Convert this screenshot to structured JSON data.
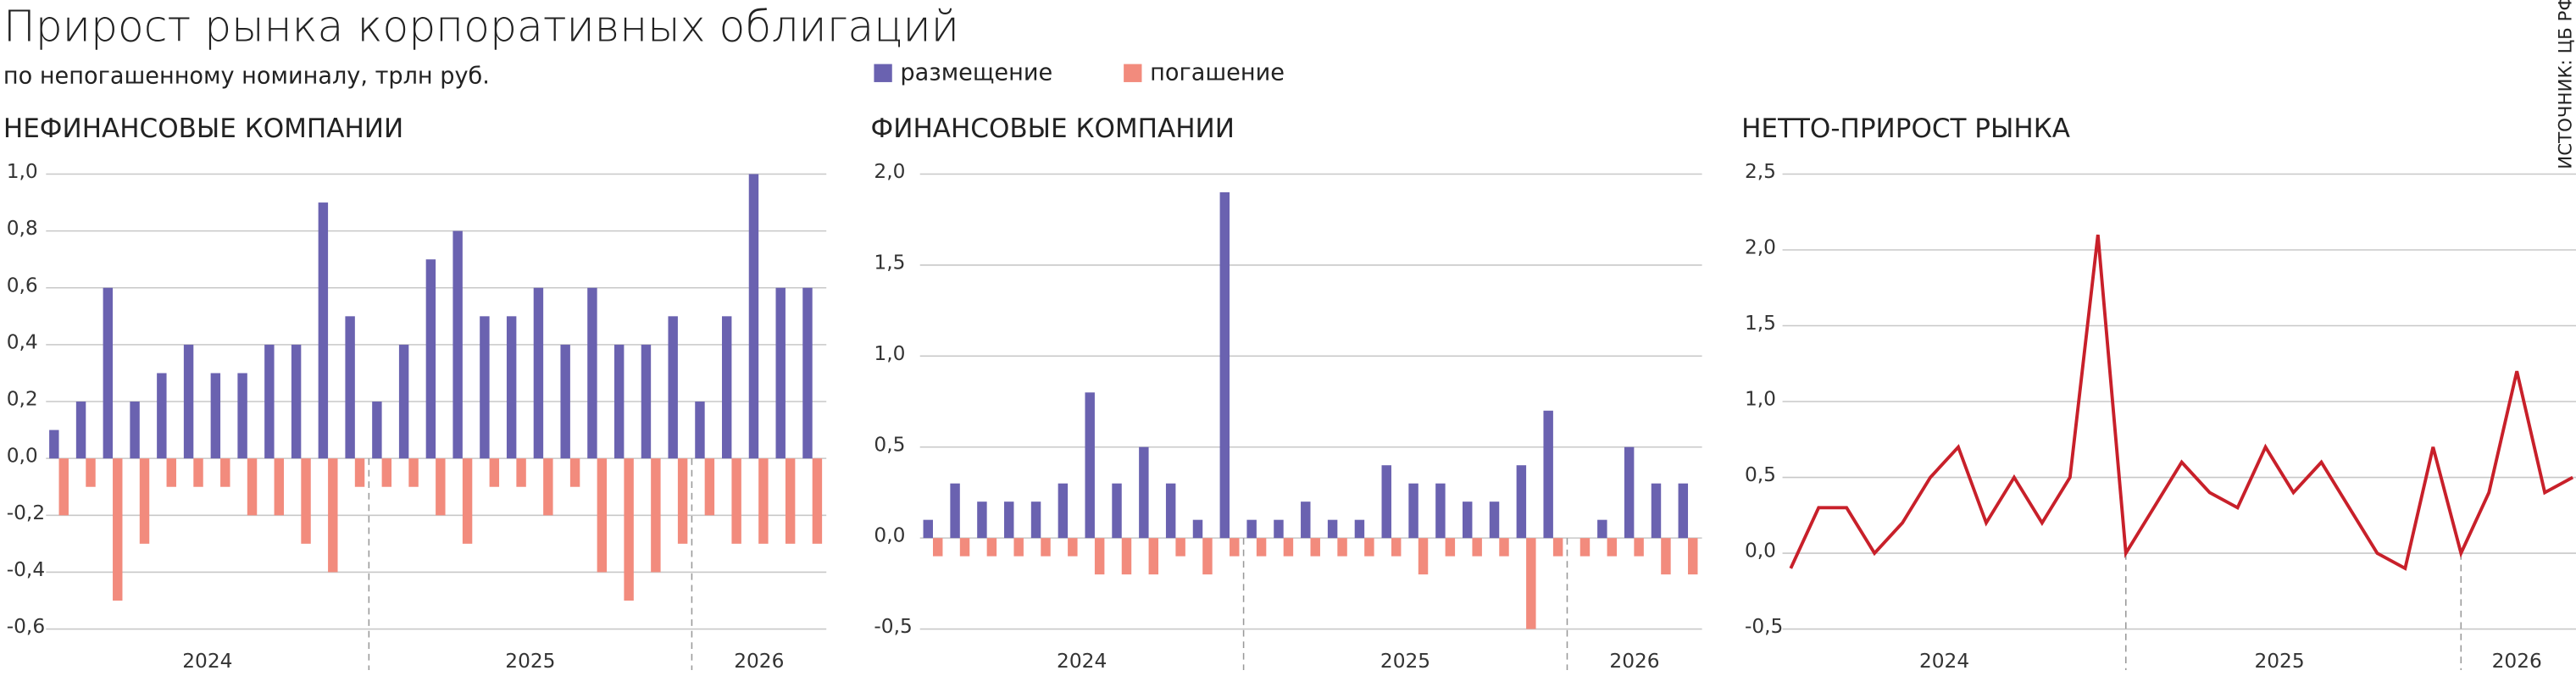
{
  "title": "Прирост рынка корпоративных облигаций",
  "subtitle": "по непогашенному номиналу, трлн руб.",
  "source": "ИСТОЧНИК: ЦБ РФ",
  "chart_data": [
    {
      "type": "bar",
      "title": "НЕФИНАНСОВЫЕ КОМПАНИИ",
      "legend": false,
      "categories": [
        "2024",
        "2024",
        "2024",
        "2024",
        "2024",
        "2024",
        "2024",
        "2024",
        "2024",
        "2024",
        "2024",
        "2024",
        "2025",
        "2025",
        "2025",
        "2025",
        "2025",
        "2025",
        "2025",
        "2025",
        "2025",
        "2025",
        "2025",
        "2025",
        "2026",
        "2026",
        "2026",
        "2026",
        "2026"
      ],
      "series": [
        {
          "color": "#6a62b0",
          "values": [
            0.1,
            0.2,
            0.6,
            0.2,
            0.3,
            0.4,
            0.3,
            0.3,
            0.4,
            0.4,
            0.9,
            0.5,
            0.2,
            0.4,
            0.7,
            0.8,
            0.5,
            0.5,
            0.6,
            0.4,
            0.6,
            0.4,
            0.4,
            0.5,
            0.2,
            0.5,
            1.0,
            0.6,
            0.6
          ]
        },
        {
          "color": "#f28b7d",
          "values": [
            -0.2,
            -0.1,
            -0.5,
            -0.3,
            -0.1,
            -0.1,
            -0.1,
            -0.2,
            -0.2,
            -0.3,
            -0.4,
            -0.1,
            -0.1,
            -0.1,
            -0.2,
            -0.3,
            -0.1,
            -0.1,
            -0.2,
            -0.1,
            -0.4,
            -0.5,
            -0.4,
            -0.3,
            -0.2,
            -0.3,
            -0.3,
            -0.3,
            -0.3
          ]
        }
      ],
      "ylim": [
        -0.6,
        1.0
      ],
      "yticks": [
        {
          "value": -0.6,
          "label": "-0,6"
        },
        {
          "value": -0.4,
          "label": "-0,4"
        },
        {
          "value": -0.2,
          "label": "-0,2"
        },
        {
          "value": 0,
          "label": "0,0"
        },
        {
          "value": 0.2,
          "label": "0,2"
        },
        {
          "value": 0.4,
          "label": "0,4"
        },
        {
          "value": 0.6,
          "label": "0,6"
        },
        {
          "value": 0.8,
          "label": "0,8"
        },
        {
          "value": 1.0,
          "label": "1,0"
        }
      ],
      "grid": true
    },
    {
      "type": "bar",
      "title": "ФИНАНСОВЫЕ КОМПАНИИ",
      "legend": true,
      "categories": [
        "2024",
        "2024",
        "2024",
        "2024",
        "2024",
        "2024",
        "2024",
        "2024",
        "2024",
        "2024",
        "2024",
        "2024",
        "2025",
        "2025",
        "2025",
        "2025",
        "2025",
        "2025",
        "2025",
        "2025",
        "2025",
        "2025",
        "2025",
        "2025",
        "2026",
        "2026",
        "2026",
        "2026",
        "2026"
      ],
      "series": [
        {
          "name": "размещение",
          "color": "#6a62b0",
          "values": [
            0.1,
            0.3,
            0.2,
            0.2,
            0.2,
            0.3,
            0.8,
            0.3,
            0.5,
            0.3,
            0.1,
            1.9,
            0.1,
            0.1,
            0.2,
            0.1,
            0.1,
            0.4,
            0.3,
            0.3,
            0.2,
            0.2,
            0.4,
            0.7,
            0.0,
            0.1,
            0.5,
            0.3,
            0.3
          ]
        },
        {
          "name": "погашение",
          "color": "#f28b7d",
          "values": [
            -0.1,
            -0.1,
            -0.1,
            -0.1,
            -0.1,
            -0.1,
            -0.2,
            -0.2,
            -0.2,
            -0.1,
            -0.2,
            -0.1,
            -0.1,
            -0.1,
            -0.1,
            -0.1,
            -0.1,
            -0.1,
            -0.2,
            -0.1,
            -0.1,
            -0.1,
            -0.5,
            -0.1,
            -0.1,
            -0.1,
            -0.1,
            -0.2,
            -0.2
          ]
        }
      ],
      "ylim": [
        -0.5,
        2.0
      ],
      "yticks": [
        {
          "value": -0.5,
          "label": "-0,5"
        },
        {
          "value": 0,
          "label": "0,0"
        },
        {
          "value": 0.5,
          "label": "0,5"
        },
        {
          "value": 1.0,
          "label": "1,0"
        },
        {
          "value": 1.5,
          "label": "1,5"
        },
        {
          "value": 2.0,
          "label": "2,0"
        }
      ],
      "grid": true
    },
    {
      "type": "line",
      "title": "НЕТТО-ПРИРОСТ РЫНКА",
      "categories": [
        "2024",
        "2024",
        "2024",
        "2024",
        "2024",
        "2024",
        "2024",
        "2024",
        "2024",
        "2024",
        "2024",
        "2024",
        "2025",
        "2025",
        "2025",
        "2025",
        "2025",
        "2025",
        "2025",
        "2025",
        "2025",
        "2025",
        "2025",
        "2025",
        "2026",
        "2026",
        "2026",
        "2026",
        "2026"
      ],
      "series": [
        {
          "color": "#c8202a",
          "values": [
            -0.1,
            0.3,
            0.3,
            0.0,
            0.2,
            0.5,
            0.7,
            0.2,
            0.5,
            0.2,
            0.5,
            2.1,
            0.0,
            0.3,
            0.6,
            0.4,
            0.3,
            0.7,
            0.4,
            0.6,
            0.3,
            0.0,
            -0.1,
            0.7,
            0.0,
            0.4,
            1.2,
            0.4,
            0.5
          ]
        }
      ],
      "ylim": [
        -0.5,
        2.5
      ],
      "yticks": [
        {
          "value": -0.5,
          "label": "-0,5"
        },
        {
          "value": 0,
          "label": "0,0"
        },
        {
          "value": 0.5,
          "label": "0,5"
        },
        {
          "value": 1.0,
          "label": "1,0"
        },
        {
          "value": 1.5,
          "label": "1,5"
        },
        {
          "value": 2.0,
          "label": "2,0"
        },
        {
          "value": 2.5,
          "label": "2,5"
        }
      ],
      "grid": true
    }
  ]
}
